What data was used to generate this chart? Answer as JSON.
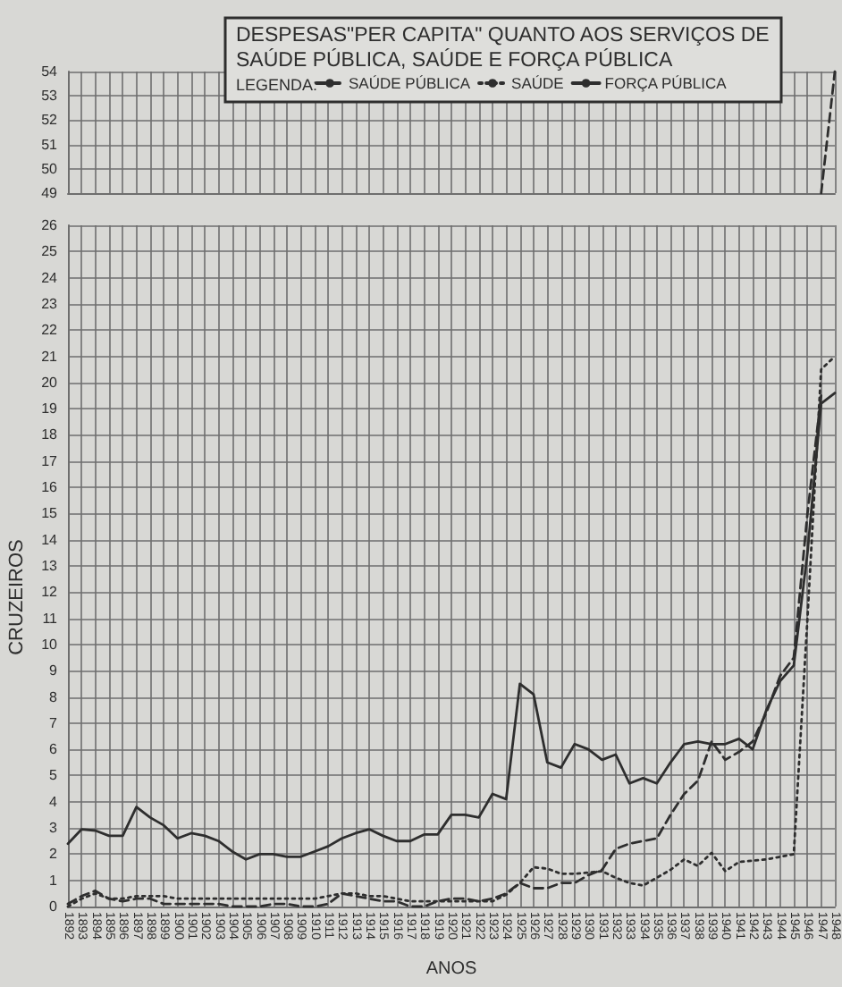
{
  "chart_data": [
    {
      "type": "line",
      "title": "DESPESAS\"PER CAPITA\" QUANTO AOS SERVIÇOS DE\nSAÚDE PÚBLICA, SAÚDE E FORÇA PÚBLICA",
      "legend_title": "LEGENDA:",
      "legend": "top",
      "grid": true,
      "marker": "none",
      "tick_labels": "y",
      "categories": [
        "1892",
        "1893",
        "1894",
        "1895",
        "1896",
        "1897",
        "1898",
        "1899",
        "1900",
        "1901",
        "1902",
        "1903",
        "1904",
        "1905",
        "1906",
        "1907",
        "1908",
        "1909",
        "1910",
        "1911",
        "1912",
        "1913",
        "1914",
        "1915",
        "1916",
        "1917",
        "1918",
        "1919",
        "1920",
        "1921",
        "1922",
        "1923",
        "1924",
        "1925",
        "1926",
        "1927",
        "1928",
        "1929",
        "1930",
        "1931",
        "1932",
        "1933",
        "1934",
        "1935",
        "1936",
        "1937",
        "1938",
        "1939",
        "1940",
        "1941",
        "1942",
        "1943",
        "1944",
        "1945",
        "1946",
        "1947",
        "1948"
      ],
      "ylim": [
        49,
        54
      ],
      "yticks": [
        49,
        50,
        51,
        52,
        53,
        54
      ],
      "series": [
        {
          "name": "SAÚDE PÚBLICA",
          "color": "#2e2e2e",
          "line_style": "dashed",
          "values": [
            null,
            null,
            null,
            null,
            null,
            null,
            null,
            null,
            null,
            null,
            null,
            null,
            null,
            null,
            null,
            null,
            null,
            null,
            null,
            null,
            null,
            null,
            null,
            null,
            null,
            null,
            null,
            null,
            null,
            null,
            null,
            null,
            null,
            null,
            null,
            null,
            null,
            null,
            null,
            null,
            null,
            null,
            null,
            null,
            null,
            null,
            null,
            null,
            null,
            null,
            null,
            null,
            null,
            null,
            null,
            49,
            54
          ]
        },
        {
          "name": "SAÚDE",
          "color": "#2e2e2e",
          "line_style": "dotted",
          "values": [
            null,
            null,
            null,
            null,
            null,
            null,
            null,
            null,
            null,
            null,
            null,
            null,
            null,
            null,
            null,
            null,
            null,
            null,
            null,
            null,
            null,
            null,
            null,
            null,
            null,
            null,
            null,
            null,
            null,
            null,
            null,
            null,
            null,
            null,
            null,
            null,
            null,
            null,
            null,
            null,
            null,
            null,
            null,
            null,
            null,
            null,
            null,
            null,
            null,
            null,
            null,
            null,
            null,
            null,
            null,
            null,
            null
          ]
        },
        {
          "name": "FORÇA PÚBLICA",
          "color": "#2e2e2e",
          "line_style": "solid",
          "values": [
            null,
            null,
            null,
            null,
            null,
            null,
            null,
            null,
            null,
            null,
            null,
            null,
            null,
            null,
            null,
            null,
            null,
            null,
            null,
            null,
            null,
            null,
            null,
            null,
            null,
            null,
            null,
            null,
            null,
            null,
            null,
            null,
            null,
            null,
            null,
            null,
            null,
            null,
            null,
            null,
            null,
            null,
            null,
            null,
            null,
            null,
            null,
            null,
            null,
            null,
            null,
            null,
            null,
            null,
            null,
            null,
            null
          ]
        }
      ]
    },
    {
      "type": "line",
      "xlabel": "ANOS",
      "ylabel": "CRUZEIROS",
      "grid": true,
      "marker": "none",
      "categories": [
        "1892",
        "1893",
        "1894",
        "1895",
        "1896",
        "1897",
        "1898",
        "1899",
        "1900",
        "1901",
        "1902",
        "1903",
        "1904",
        "1905",
        "1906",
        "1907",
        "1908",
        "1909",
        "1910",
        "1911",
        "1912",
        "1913",
        "1914",
        "1915",
        "1916",
        "1917",
        "1918",
        "1919",
        "1920",
        "1921",
        "1922",
        "1923",
        "1924",
        "1925",
        "1926",
        "1927",
        "1928",
        "1929",
        "1930",
        "1931",
        "1932",
        "1933",
        "1934",
        "1935",
        "1936",
        "1937",
        "1938",
        "1939",
        "1940",
        "1941",
        "1942",
        "1943",
        "1944",
        "1945",
        "1946",
        "1947",
        "1948"
      ],
      "ylim": [
        0,
        26
      ],
      "yticks": [
        0,
        1,
        2,
        3,
        4,
        5,
        6,
        7,
        8,
        9,
        10,
        11,
        12,
        13,
        14,
        15,
        16,
        17,
        18,
        19,
        20,
        21,
        22,
        23,
        24,
        25,
        26
      ],
      "series": [
        {
          "color": "#2e2e2e",
          "line_style": "dashed",
          "values": [
            0.1,
            0.4,
            0.6,
            0.3,
            0.2,
            0.3,
            0.3,
            0.1,
            0.1,
            0.1,
            0.1,
            0.1,
            0,
            0,
            0,
            0.1,
            0.1,
            0,
            0,
            0.1,
            0.5,
            0.4,
            0.3,
            0.2,
            0.2,
            0,
            0,
            0.2,
            0.3,
            0.3,
            0.2,
            0.3,
            0.5,
            0.9,
            0.7,
            0.7,
            0.9,
            0.9,
            1.2,
            1.4,
            2.2,
            2.4,
            2.5,
            2.6,
            3.5,
            4.3,
            4.8,
            6.3,
            5.6,
            5.9,
            6.3,
            7.4,
            8.8,
            9.5,
            15,
            19.5,
            null
          ]
        },
        {
          "color": "#2e2e2e",
          "line_style": "dotted",
          "values": [
            0,
            0.3,
            0.5,
            0.3,
            0.3,
            0.4,
            0.4,
            0.4,
            0.3,
            0.3,
            0.3,
            0.3,
            0.3,
            0.3,
            0.3,
            0.3,
            0.3,
            0.3,
            0.3,
            0.4,
            0.5,
            0.5,
            0.4,
            0.4,
            0.3,
            0.2,
            0.2,
            0.2,
            0.2,
            0.2,
            0.2,
            0.2,
            0.45,
            0.9,
            1.5,
            1.45,
            1.25,
            1.25,
            1.3,
            1.35,
            1.1,
            0.9,
            0.8,
            1.1,
            1.4,
            1.8,
            1.55,
            2.05,
            1.35,
            1.7,
            1.75,
            1.8,
            1.9,
            2.0,
            11,
            20.5,
            21
          ]
        },
        {
          "color": "#2e2e2e",
          "line_style": "solid",
          "values": [
            2.4,
            2.95,
            2.9,
            2.7,
            2.7,
            3.8,
            3.4,
            3.1,
            2.6,
            2.8,
            2.7,
            2.5,
            2.1,
            1.8,
            2.0,
            2.0,
            1.9,
            1.9,
            2.1,
            2.3,
            2.6,
            2.8,
            2.95,
            2.7,
            2.5,
            2.5,
            2.75,
            2.75,
            3.5,
            3.5,
            3.4,
            4.3,
            4.1,
            8.5,
            8.1,
            5.5,
            5.3,
            6.2,
            6.0,
            5.6,
            5.8,
            4.7,
            4.9,
            4.7,
            5.5,
            6.2,
            6.3,
            6.2,
            6.2,
            6.4,
            6.0,
            7.5,
            8.6,
            9.2,
            13.5,
            19.2,
            19.6
          ]
        }
      ]
    }
  ]
}
